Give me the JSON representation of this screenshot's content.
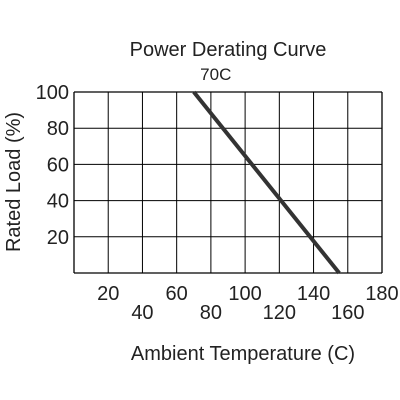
{
  "chart_data": {
    "type": "line",
    "title": "Power Derating Curve",
    "xlabel": "Ambient Temperature (C)",
    "ylabel": "Rated Load (%)",
    "xlim": [
      0,
      180
    ],
    "ylim": [
      0,
      100
    ],
    "x_ticks": [
      20,
      40,
      60,
      80,
      100,
      120,
      140,
      160,
      180
    ],
    "y_ticks": [
      20,
      40,
      60,
      80,
      100
    ],
    "grid": true,
    "series": [
      {
        "x": [
          70,
          155
        ],
        "y": [
          100,
          0
        ]
      }
    ],
    "annotations": [
      {
        "text": "70C",
        "x": 70,
        "y": 100
      }
    ],
    "colors": {
      "line": "#333333",
      "grid": "#000000",
      "text": "#222222"
    }
  }
}
